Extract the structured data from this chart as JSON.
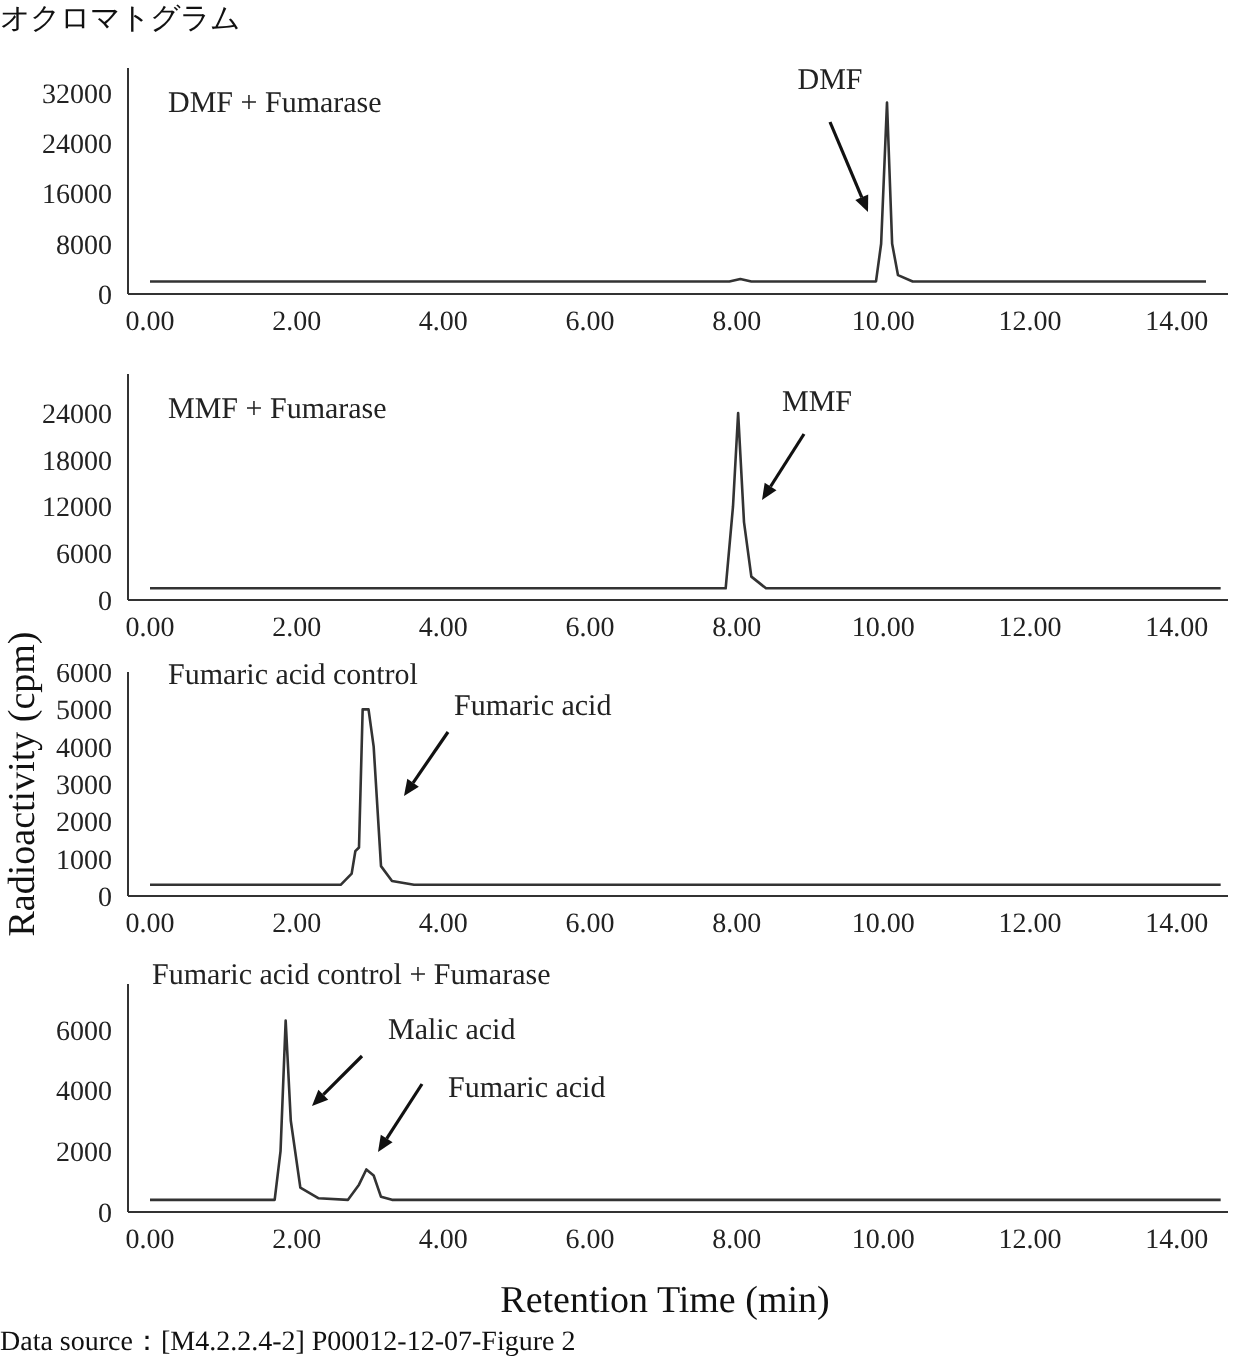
{
  "chart_data": [
    {
      "type": "line",
      "title": "オクロマトグラム",
      "subtitle": "DMF + Fumarase",
      "x": [
        0,
        7.9,
        8.05,
        8.2,
        9.9,
        9.97,
        10.05,
        10.12,
        10.2,
        10.4,
        14.4
      ],
      "series": [
        {
          "color": "#333333",
          "values": [
            2000,
            2000,
            2400,
            2000,
            2000,
            8000,
            30500,
            8000,
            3000,
            2000,
            2000
          ]
        }
      ],
      "xlim": [
        -0.3,
        14.7
      ],
      "xticks": [
        {
          "value": 0,
          "label": "0.00"
        },
        {
          "value": 2,
          "label": "2.00"
        },
        {
          "value": 4,
          "label": "4.00"
        },
        {
          "value": 6,
          "label": "6.00"
        },
        {
          "value": 8,
          "label": "8.00"
        },
        {
          "value": 10,
          "label": "10.00"
        },
        {
          "value": 12,
          "label": "12.00"
        },
        {
          "value": 14,
          "label": "14.00"
        }
      ],
      "ylim": [
        0,
        36000
      ],
      "yticks": [
        0,
        8000,
        16000,
        24000,
        32000
      ],
      "annotations": [
        "DMF"
      ],
      "grid": false,
      "legend": false,
      "marker": "none",
      "line_style": "solid"
    },
    {
      "type": "line",
      "subtitle": "MMF + Fumarase",
      "x": [
        0,
        7.85,
        7.95,
        8.02,
        8.1,
        8.2,
        8.4,
        14.6
      ],
      "series": [
        {
          "color": "#333333",
          "values": [
            1500,
            1500,
            12000,
            24000,
            10000,
            3000,
            1500,
            1500
          ]
        }
      ],
      "xlim": [
        -0.3,
        14.7
      ],
      "xticks": [
        {
          "value": 0,
          "label": "0.00"
        },
        {
          "value": 2,
          "label": "2.00"
        },
        {
          "value": 4,
          "label": "4.00"
        },
        {
          "value": 6,
          "label": "6.00"
        },
        {
          "value": 8,
          "label": "8.00"
        },
        {
          "value": 10,
          "label": "10.00"
        },
        {
          "value": 12,
          "label": "12.00"
        },
        {
          "value": 14,
          "label": "14.00"
        }
      ],
      "ylim": [
        0,
        29000
      ],
      "yticks": [
        0,
        6000,
        12000,
        18000,
        24000
      ],
      "annotations": [
        "MMF"
      ],
      "grid": false,
      "legend": false,
      "marker": "none",
      "line_style": "solid"
    },
    {
      "type": "line",
      "subtitle": "Fumaric acid control",
      "ylabel": "Radioactivity (cpm)",
      "x": [
        0,
        2.6,
        2.75,
        2.8,
        2.85,
        2.9,
        2.98,
        3.05,
        3.15,
        3.3,
        3.6,
        14.6
      ],
      "series": [
        {
          "color": "#333333",
          "values": [
            300,
            300,
            600,
            1200,
            1300,
            5000,
            5000,
            4000,
            800,
            400,
            300,
            300
          ]
        }
      ],
      "xlim": [
        -0.3,
        14.7
      ],
      "xticks": [
        {
          "value": 0,
          "label": "0.00"
        },
        {
          "value": 2,
          "label": "2.00"
        },
        {
          "value": 4,
          "label": "4.00"
        },
        {
          "value": 6,
          "label": "6.00"
        },
        {
          "value": 8,
          "label": "8.00"
        },
        {
          "value": 10,
          "label": "10.00"
        },
        {
          "value": 12,
          "label": "12.00"
        },
        {
          "value": 14,
          "label": "14.00"
        }
      ],
      "ylim": [
        0,
        6000
      ],
      "yticks": [
        0,
        1000,
        2000,
        3000,
        4000,
        5000,
        6000
      ],
      "annotations": [
        "Fumaric acid"
      ],
      "grid": false,
      "legend": false,
      "marker": "none",
      "line_style": "solid"
    },
    {
      "type": "line",
      "subtitle": "Fumaric acid control + Fumarase",
      "xlabel": "Retention Time (min)",
      "x": [
        0,
        1.7,
        1.78,
        1.85,
        1.92,
        2.05,
        2.3,
        2.7,
        2.85,
        2.95,
        3.05,
        3.15,
        3.3,
        14.6
      ],
      "series": [
        {
          "color": "#333333",
          "values": [
            400,
            400,
            2000,
            6300,
            3000,
            800,
            450,
            400,
            900,
            1400,
            1200,
            500,
            400,
            400
          ]
        }
      ],
      "xlim": [
        -0.3,
        14.7
      ],
      "xticks": [
        {
          "value": 0,
          "label": "0.00"
        },
        {
          "value": 2,
          "label": "2.00"
        },
        {
          "value": 4,
          "label": "4.00"
        },
        {
          "value": 6,
          "label": "6.00"
        },
        {
          "value": 8,
          "label": "8.00"
        },
        {
          "value": 10,
          "label": "10.00"
        },
        {
          "value": 12,
          "label": "12.00"
        },
        {
          "value": 14,
          "label": "14.00"
        }
      ],
      "ylim": [
        0,
        7500
      ],
      "yticks": [
        0,
        2000,
        4000,
        6000
      ],
      "annotations": [
        "Malic acid",
        "Fumaric acid",
        "Data source：[M4.2.2.4-2] P00012-12-07-Figure 2"
      ],
      "grid": false,
      "legend": false,
      "marker": "none",
      "line_style": "solid"
    }
  ]
}
